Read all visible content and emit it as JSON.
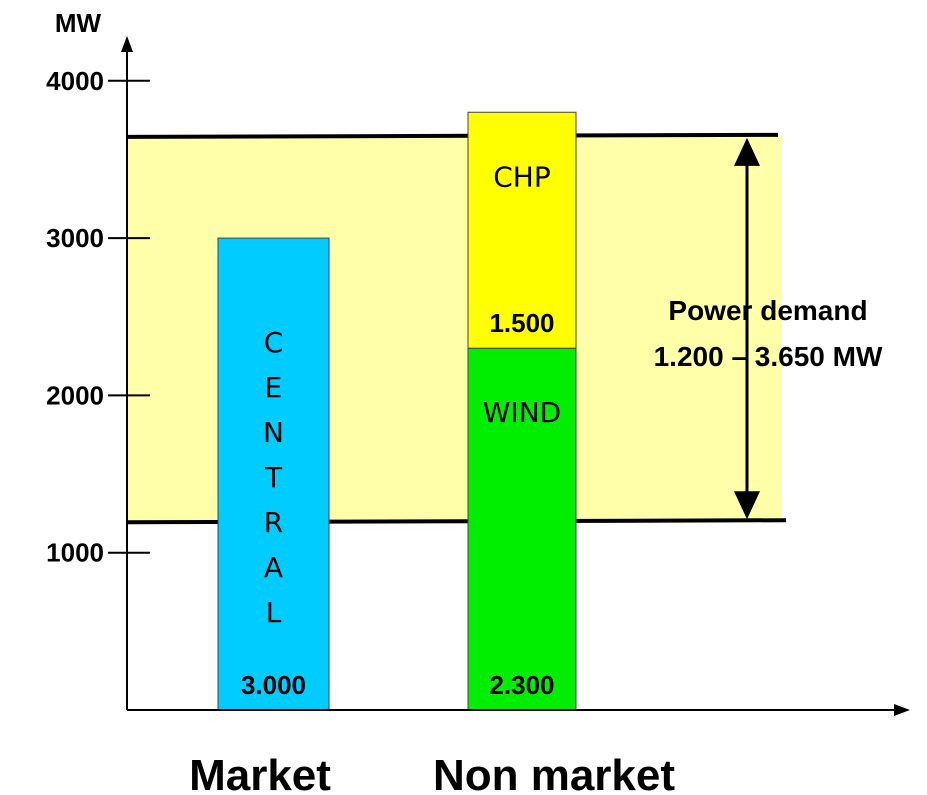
{
  "chart_data": {
    "type": "bar",
    "ylabel": "MW",
    "yticks": [
      1000,
      2000,
      3000,
      4000
    ],
    "ylim": [
      0,
      4000
    ],
    "categories": [
      "Market",
      "Non market"
    ],
    "bars": [
      {
        "category": "Market",
        "segments": [
          {
            "name": "CENTRAL",
            "start": 0,
            "end": 3000,
            "color": "#00CCFF",
            "value_label": "3.000"
          }
        ]
      },
      {
        "category": "Non market",
        "segments": [
          {
            "name": "WIND",
            "start": 0,
            "end": 2300,
            "color": "#00EE00",
            "value_label": "2.300"
          },
          {
            "name": "CHP",
            "start": 2300,
            "end": 3800,
            "color": "#FFFF00",
            "value_label": "1.500"
          }
        ]
      }
    ],
    "band": {
      "low": 1200,
      "high": 3650,
      "color": "#FFFFAA",
      "label_line1": "Power demand",
      "label_line2": "1.200 – 3.650 MW"
    }
  }
}
